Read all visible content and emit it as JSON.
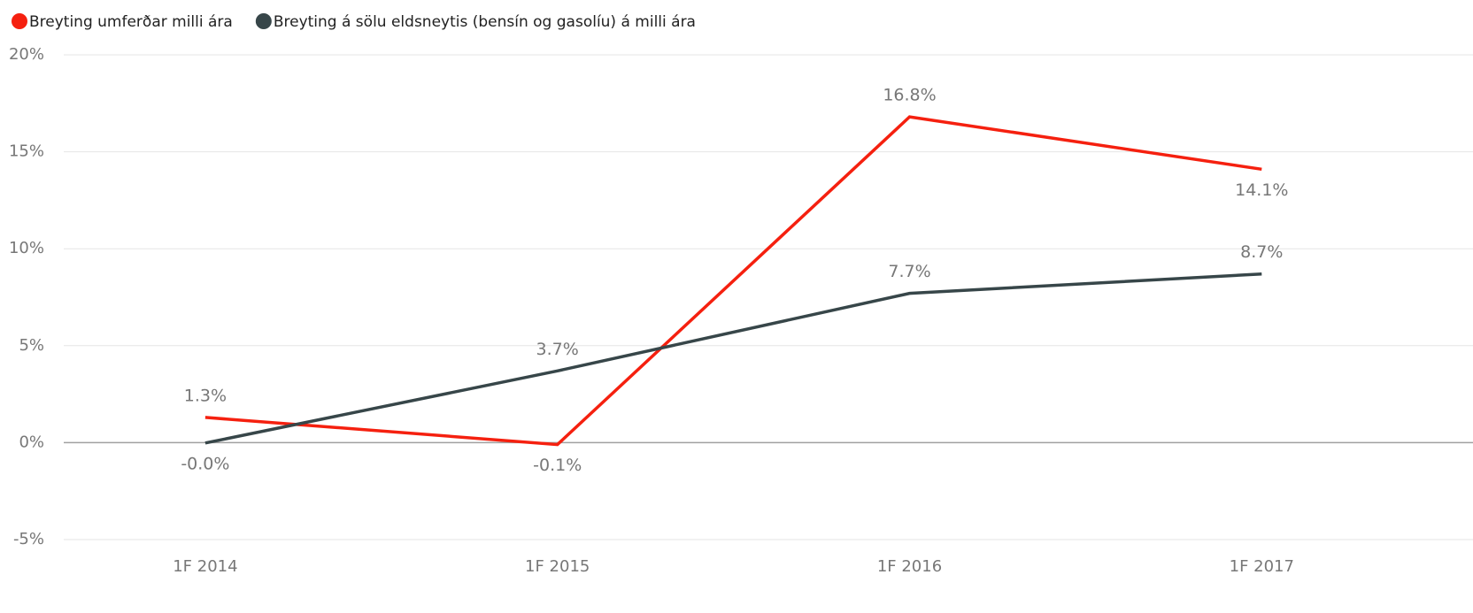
{
  "chart_data": {
    "type": "line",
    "categories": [
      "1F 2014",
      "1F 2015",
      "1F 2016",
      "1F 2017"
    ],
    "series": [
      {
        "name": "Breyting umferðar milli ára",
        "color": "#f5200f",
        "values": [
          1.3,
          -0.1,
          16.8,
          14.1
        ],
        "value_labels": [
          "1.3%",
          "-0.1%",
          "16.8%",
          "14.1%"
        ]
      },
      {
        "name": "Breyting á sölu eldsneytis (bensín og gasolíu) á milli ára",
        "color": "#374649",
        "values": [
          -0.02,
          3.7,
          7.7,
          8.7
        ],
        "value_labels": [
          "-0.0%",
          "3.7%",
          "7.7%",
          "8.7%"
        ]
      }
    ],
    "ylim": [
      -5,
      20
    ],
    "yticks": [
      {
        "value": -5,
        "label": "-5%"
      },
      {
        "value": 0,
        "label": "0%"
      },
      {
        "value": 5,
        "label": "5%"
      },
      {
        "value": 10,
        "label": "10%"
      },
      {
        "value": 15,
        "label": "15%"
      },
      {
        "value": 20,
        "label": "20%"
      }
    ],
    "grid": true
  }
}
